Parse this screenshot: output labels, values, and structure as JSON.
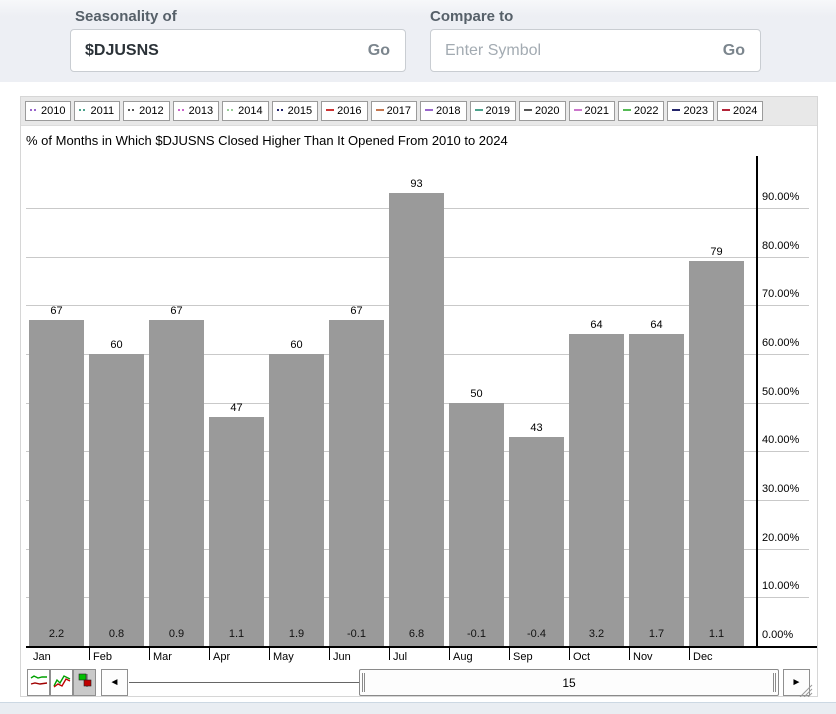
{
  "header": {
    "seasonality_label": "Seasonality of",
    "symbol_value": "$DJUSNS",
    "symbol_go_label": "Go",
    "compare_label": "Compare to",
    "compare_placeholder": "Enter Symbol",
    "compare_go_label": "Go"
  },
  "legend": {
    "years": [
      {
        "label": "2010",
        "marker": "dots",
        "color": "#9966cc"
      },
      {
        "label": "2011",
        "marker": "dots",
        "color": "#4ca28c"
      },
      {
        "label": "2012",
        "marker": "dots",
        "color": "#555555"
      },
      {
        "label": "2013",
        "marker": "dots",
        "color": "#cc66cc"
      },
      {
        "label": "2014",
        "marker": "dots",
        "color": "#99cc99"
      },
      {
        "label": "2015",
        "marker": "dots",
        "color": "#24266b"
      },
      {
        "label": "2016",
        "marker": "dash",
        "color": "#cc3333"
      },
      {
        "label": "2017",
        "marker": "dash",
        "color": "#c4764f"
      },
      {
        "label": "2018",
        "marker": "dash",
        "color": "#9966cc"
      },
      {
        "label": "2019",
        "marker": "dash",
        "color": "#4ca28c"
      },
      {
        "label": "2020",
        "marker": "dash",
        "color": "#555555"
      },
      {
        "label": "2021",
        "marker": "dash",
        "color": "#cc77cc"
      },
      {
        "label": "2022",
        "marker": "dash",
        "color": "#55bb55"
      },
      {
        "label": "2023",
        "marker": "dash",
        "color": "#24266b"
      },
      {
        "label": "2024",
        "marker": "dash",
        "color": "#b32438"
      }
    ]
  },
  "chart_data": {
    "type": "bar",
    "title": "% of Months in Which $DJUSNS Closed Higher Than It Opened From 2010 to 2024",
    "categories": [
      "Jan",
      "Feb",
      "Mar",
      "Apr",
      "May",
      "Jun",
      "Jul",
      "Aug",
      "Sep",
      "Oct",
      "Nov",
      "Dec"
    ],
    "values": [
      67,
      60,
      67,
      47,
      60,
      67,
      93,
      50,
      43,
      64,
      64,
      79
    ],
    "avg_change": [
      "2.2",
      "0.8",
      "0.9",
      "1.1",
      "1.9",
      "-0.1",
      "6.8",
      "-0.1",
      "-0.4",
      "3.2",
      "1.7",
      "1.1"
    ],
    "ylabel": "",
    "xlabel": "",
    "y_ticks": [
      "0.00%",
      "10.00%",
      "20.00%",
      "30.00%",
      "40.00%",
      "50.00%",
      "60.00%",
      "70.00%",
      "80.00%",
      "90.00%"
    ],
    "ylim": [
      0,
      100
    ],
    "grid": true,
    "legend_position": "top",
    "bar_color": "#9a9a9a"
  },
  "toolbar": {
    "chart_type_icons": [
      "line-chart-icon",
      "performance-lines-icon",
      "bar-squares-icon"
    ],
    "selected_icon_index": 2,
    "left_arrow_glyph": "◄",
    "right_arrow_glyph": "►",
    "slider_value": "15"
  }
}
